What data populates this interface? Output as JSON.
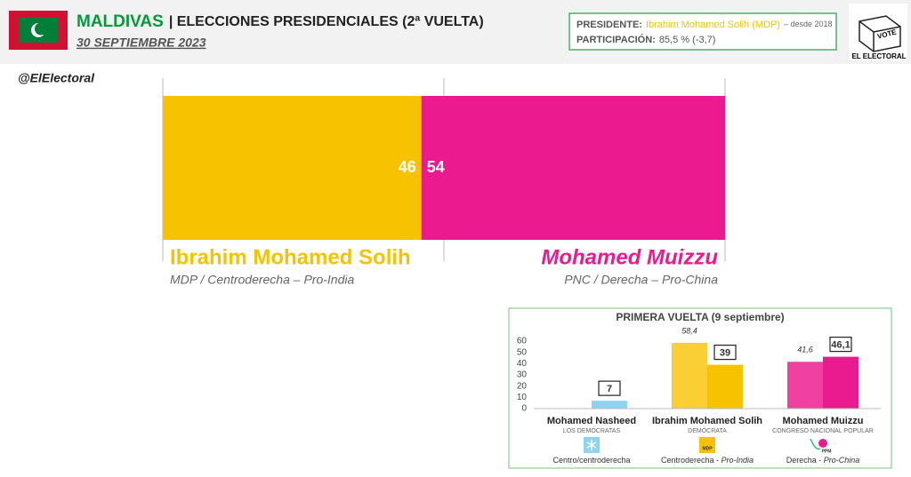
{
  "header": {
    "title": "MALDIVAS",
    "subtitle": "| ELECCIONES PRESIDENCIALES (2ª VUELTA)",
    "date": "30 SEPTIEMBRE 2023"
  },
  "info": {
    "president_label": "PRESIDENTE:",
    "president": "Ibrahim Mohamed Solih (MDP)",
    "president_since": "– desde 2018",
    "turnout_label": "PARTICIPACIÓN:",
    "turnout": "85,5 % (-3,7)"
  },
  "logo": {
    "vote": "VOTE",
    "name": "EL ELECTORAL"
  },
  "handle": "@ElElectoral",
  "chart_data": [
    {
      "type": "bar",
      "orientation": "horizontal",
      "stacked": true,
      "series": [
        {
          "name": "Ibrahim Mohamed Solih",
          "detail": "MDP / Centroderecha – Pro-India",
          "color": "#f7c300",
          "values": [
            46
          ]
        },
        {
          "name": "Mohamed Muizzu",
          "detail": "PNC / Derecha – Pro-China",
          "color": "#ec1a8f",
          "values": [
            54
          ]
        }
      ],
      "xlim": [
        0,
        100
      ],
      "xticks": [
        0,
        50,
        100
      ],
      "grid": true
    },
    {
      "type": "bar",
      "title": "PRIMERA VUELTA (9 septiembre)",
      "categories": [
        "Mohamed Nasheed",
        "Ibrahim Mohamed Solih",
        "Mohamed Muizzu"
      ],
      "parties": [
        "LOS DEMÓCRATAS",
        "DEMÓCRATA",
        "CONGRESO NACIONAL POPULAR"
      ],
      "party_logos": [
        null,
        "MDP",
        "PPM"
      ],
      "ideologies": [
        [
          "Centro/centroderecha"
        ],
        [
          "Centroderecha - ",
          "Pro-India"
        ],
        [
          "Derecha - ",
          "Pro-China"
        ]
      ],
      "series": [
        {
          "colors": [
            "#8fd3f2",
            "#f9cf35",
            "#f040a2"
          ],
          "values": [
            null,
            58.4,
            41.6
          ],
          "value_labels": [
            null,
            "58,4",
            "41,6"
          ],
          "boxed": false
        },
        {
          "colors": [
            "#8fd3f2",
            "#f7c300",
            "#ea1b8e"
          ],
          "values": [
            7,
            39,
            46.1
          ],
          "value_labels": [
            "7",
            "39",
            "46,1"
          ],
          "boxed": true
        }
      ],
      "ylim": [
        0,
        60
      ],
      "yticks": [
        0,
        10,
        20,
        30,
        40,
        50,
        60
      ],
      "grid": false
    }
  ]
}
